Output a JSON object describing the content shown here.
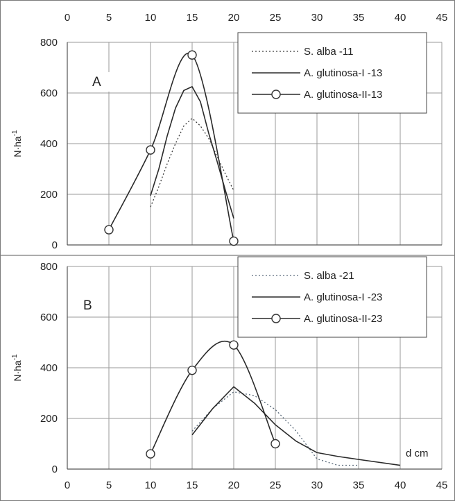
{
  "chart_data": [
    {
      "type": "line",
      "panel_label": "A",
      "xlabel": "",
      "ylabel": "N·ha",
      "ylabel_sup": "-1",
      "xlim": [
        0,
        45
      ],
      "ylim": [
        0,
        800
      ],
      "x_ticks": [
        "0",
        "5",
        "10",
        "15",
        "20",
        "25",
        "30",
        "35",
        "40",
        "45"
      ],
      "y_ticks": [
        "0",
        "200",
        "400",
        "600",
        "800"
      ],
      "grid": true,
      "legend_position": "top-right",
      "series": [
        {
          "name": "S. alba -11",
          "style": "dotted",
          "color": "#3a3a3a",
          "x": [
            10,
            11,
            12,
            13,
            14,
            15,
            16,
            17,
            18,
            19,
            20
          ],
          "y": [
            150,
            230,
            320,
            400,
            470,
            500,
            470,
            420,
            350,
            280,
            215
          ]
        },
        {
          "name": "A. glutinosa-I -13",
          "style": "solid",
          "color": "#2a2a2a",
          "x": [
            10,
            11,
            12,
            13,
            14,
            15,
            16,
            17,
            18,
            19,
            20
          ],
          "y": [
            195,
            300,
            430,
            540,
            610,
            625,
            565,
            440,
            330,
            215,
            105
          ]
        },
        {
          "name": "A. glutinosa-II-13",
          "style": "solid-marker",
          "color": "#2a2a2a",
          "x": [
            5,
            10,
            15,
            20
          ],
          "y": [
            60,
            375,
            750,
            15
          ]
        }
      ]
    },
    {
      "type": "line",
      "panel_label": "B",
      "xlabel": "d cm",
      "ylabel": "N·ha",
      "ylabel_sup": "-1",
      "xlim": [
        0,
        45
      ],
      "ylim": [
        0,
        800
      ],
      "x_ticks": [
        "0",
        "5",
        "10",
        "15",
        "20",
        "25",
        "30",
        "35",
        "40",
        "45"
      ],
      "y_ticks": [
        "0",
        "200",
        "400",
        "600",
        "800"
      ],
      "grid": true,
      "legend_position": "top-right",
      "series": [
        {
          "name": "S. alba -21",
          "style": "dotted",
          "color": "#5a6a7a",
          "x": [
            15,
            17.5,
            20,
            22.5,
            25,
            27.5,
            30,
            32.5,
            35
          ],
          "y": [
            150,
            240,
            305,
            290,
            235,
            150,
            40,
            15,
            15
          ]
        },
        {
          "name": "A. glutinosa-I -23",
          "style": "solid",
          "color": "#2a2a2a",
          "x": [
            15,
            17.5,
            20,
            22.5,
            25,
            27.5,
            30,
            32.5,
            35,
            40
          ],
          "y": [
            135,
            240,
            325,
            260,
            175,
            110,
            65,
            50,
            38,
            15
          ]
        },
        {
          "name": "A. glutinosa-II-23",
          "style": "solid-marker",
          "color": "#2a2a2a",
          "x": [
            10,
            15,
            20,
            25
          ],
          "y": [
            60,
            390,
            490,
            100
          ]
        }
      ]
    }
  ]
}
